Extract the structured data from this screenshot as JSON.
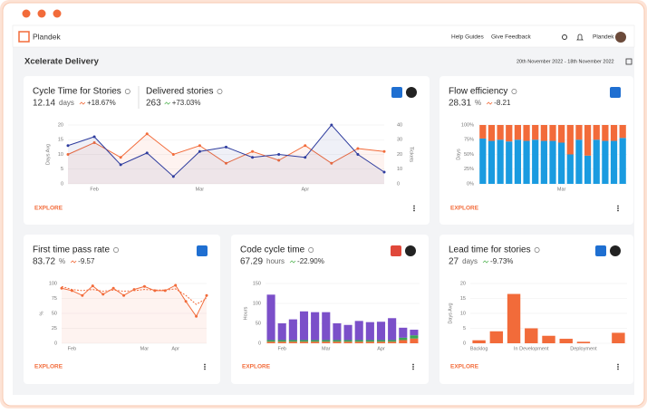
{
  "header": {
    "logo": "Plandek",
    "links": [
      "Help Guides",
      "Give Feedback"
    ],
    "user": "Plandek"
  },
  "page_title": "Xcelerate Delivery",
  "date_range": "20th November 2022 - 18th November 2022",
  "chart_data": [
    {
      "type": "line",
      "action": "EXPLORE",
      "metrics": [
        {
          "title": "Cycle Time for Stories",
          "value": 12.14,
          "unit": "days",
          "change": "+18.67%",
          "color": "#f26b3a"
        },
        {
          "title": "Delivered stories",
          "value": 263,
          "change": "+73.03%",
          "color": "#5cb85c"
        }
      ],
      "ylabel": "Days Avg",
      "y2label": "Tickets",
      "categories": [
        null,
        "Feb",
        null,
        null,
        null,
        "Mar",
        null,
        null,
        null,
        "Apr",
        null,
        null,
        null
      ],
      "ylim": [
        0,
        20
      ],
      "yticks": [
        0,
        5,
        10,
        15,
        20
      ],
      "y2lim": [
        0,
        40
      ],
      "y2ticks": [
        0,
        10,
        20,
        30,
        40
      ],
      "series": [
        {
          "color": "#f26b3a",
          "values": [
            10,
            14,
            9,
            17,
            10,
            13,
            7,
            11,
            8,
            13,
            7,
            12,
            11
          ]
        },
        {
          "color": "#2e3c9e",
          "axis": "y2",
          "values": [
            26,
            32,
            13,
            21,
            5,
            22,
            25,
            18,
            20,
            18,
            40,
            20,
            8
          ]
        }
      ]
    },
    {
      "type": "bar",
      "stacked": true,
      "action": "EXPLORE",
      "metrics": [
        {
          "title": "Flow efficiency",
          "value": 28.31,
          "unit": "%",
          "change": "-8.21",
          "color": "#f26b3a"
        }
      ],
      "ylabel": "Days",
      "categories": [
        null,
        null,
        null,
        null,
        null,
        null,
        null,
        null,
        null,
        "Mar",
        null,
        null,
        null,
        null,
        null,
        null,
        null
      ],
      "ylim": [
        0,
        100
      ],
      "yticks": [
        {
          "value": 0,
          "label": "0%"
        },
        {
          "value": 25,
          "label": "25%"
        },
        {
          "value": 50,
          "label": "50%"
        },
        {
          "value": 75,
          "label": "75%"
        },
        {
          "value": 100,
          "label": "100%"
        }
      ],
      "series": [
        {
          "color": "#1a9be0",
          "values": [
            77,
            73,
            75,
            72,
            75,
            73,
            75,
            73,
            73,
            70,
            50,
            75,
            48,
            75,
            73,
            73,
            78
          ]
        },
        {
          "color": "#f26b3a",
          "values": [
            23,
            27,
            25,
            28,
            25,
            27,
            25,
            27,
            27,
            30,
            50,
            25,
            52,
            25,
            27,
            27,
            22
          ]
        }
      ]
    },
    {
      "type": "line",
      "action": "EXPLORE",
      "metrics": [
        {
          "title": "First time pass rate",
          "value": 83.72,
          "unit": "%",
          "change": "-9.57",
          "color": "#f26b3a"
        }
      ],
      "ylabel": "%",
      "categories": [
        null,
        "Feb",
        null,
        null,
        null,
        null,
        null,
        null,
        "Mar",
        null,
        null,
        "Apr",
        null,
        null,
        null
      ],
      "ylim": [
        0,
        100
      ],
      "yticks": [
        0,
        25,
        50,
        75,
        100
      ],
      "series": [
        {
          "color": "#f26b3a",
          "values": [
            92,
            88,
            80,
            96,
            82,
            92,
            80,
            90,
            95,
            88,
            88,
            97,
            70,
            45,
            80
          ]
        },
        {
          "color": "#f26b3a",
          "dashed": true,
          "values": [
            95,
            90,
            88,
            90,
            87,
            89,
            87,
            88,
            90,
            89,
            89,
            91,
            80,
            65,
            75
          ]
        }
      ]
    },
    {
      "type": "bar",
      "stacked": true,
      "action": "EXPLORE",
      "metrics": [
        {
          "title": "Code cycle time",
          "value": 67.29,
          "unit": "hours",
          "change": "-22.90%",
          "color": "#5cb85c"
        }
      ],
      "ylabel": "Hours",
      "categories": [
        null,
        "Feb",
        null,
        null,
        null,
        "Mar",
        null,
        null,
        null,
        null,
        "Apr",
        null,
        null,
        null
      ],
      "ylim": [
        0,
        150
      ],
      "yticks": [
        0,
        50,
        100,
        150
      ],
      "series": [
        {
          "color": "#f26b3a",
          "values": [
            4,
            4,
            4,
            4,
            4,
            4,
            4,
            4,
            4,
            4,
            4,
            4,
            8,
            12
          ]
        },
        {
          "color": "#3aa655",
          "values": [
            4,
            4,
            4,
            4,
            4,
            4,
            4,
            4,
            4,
            4,
            4,
            4,
            6,
            8
          ]
        },
        {
          "color": "#7b4fc9",
          "values": [
            114,
            42,
            52,
            72,
            70,
            70,
            42,
            38,
            48,
            45,
            46,
            55,
            25,
            14
          ]
        }
      ]
    },
    {
      "type": "bar",
      "action": "EXPLORE",
      "metrics": [
        {
          "title": "Lead time for stories",
          "value": 27,
          "unit": "days",
          "change": "-9.73%",
          "color": "#5cb85c"
        }
      ],
      "ylabel": "Days Avg",
      "categories": [
        "Backlog",
        null,
        null,
        "In Development",
        null,
        null,
        "Deployment",
        null,
        null
      ],
      "ylim": [
        0,
        20
      ],
      "yticks": [
        0,
        5,
        10,
        15,
        20
      ],
      "series": [
        {
          "color": "#f26b3a",
          "values": [
            1,
            4,
            16.5,
            5,
            2.5,
            1.5,
            0.5,
            0,
            3.5
          ]
        }
      ]
    }
  ]
}
